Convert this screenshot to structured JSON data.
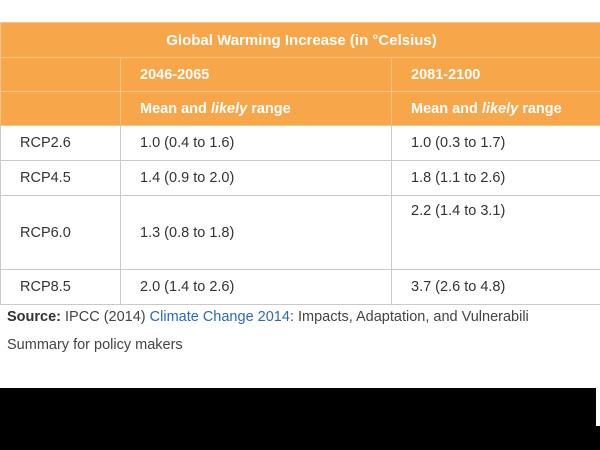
{
  "table": {
    "title": "Global Warming Increase (in °Celsius)",
    "periods": [
      "2046-2065",
      "2081-2100"
    ],
    "subheader": {
      "prefix": "Mean and ",
      "emphasis": "likely",
      "suffix": " range"
    },
    "rows": [
      {
        "scenario": "RCP2.6",
        "mid_century": "1.0 (0.4 to 1.6)",
        "late_century": "1.0 (0.3 to 1.7)"
      },
      {
        "scenario": "RCP4.5",
        "mid_century": "1.4 (0.9 to 2.0)",
        "late_century": "1.8 (1.1 to 2.6)"
      },
      {
        "scenario": "RCP6.0",
        "mid_century": "1.3 (0.8 to 1.8)",
        "late_century": "2.2 (1.4 to 3.1)"
      },
      {
        "scenario": "RCP8.5",
        "mid_century": "2.0 (1.4 to 2.6)",
        "late_century": "3.7 (2.6 to 4.8)"
      }
    ]
  },
  "source": {
    "label": "Source:",
    "before_link": " IPCC (2014) ",
    "link_text": "Climate Change 2014",
    "after_link": ": Impacts, Adaptation, and Vulnerabili",
    "line2": "Summary for policy makers"
  },
  "colors": {
    "header_bg": "#f8a64a",
    "header_text": "#ffffff",
    "link": "#2a6ab8",
    "bottom_bar": "#000000"
  }
}
